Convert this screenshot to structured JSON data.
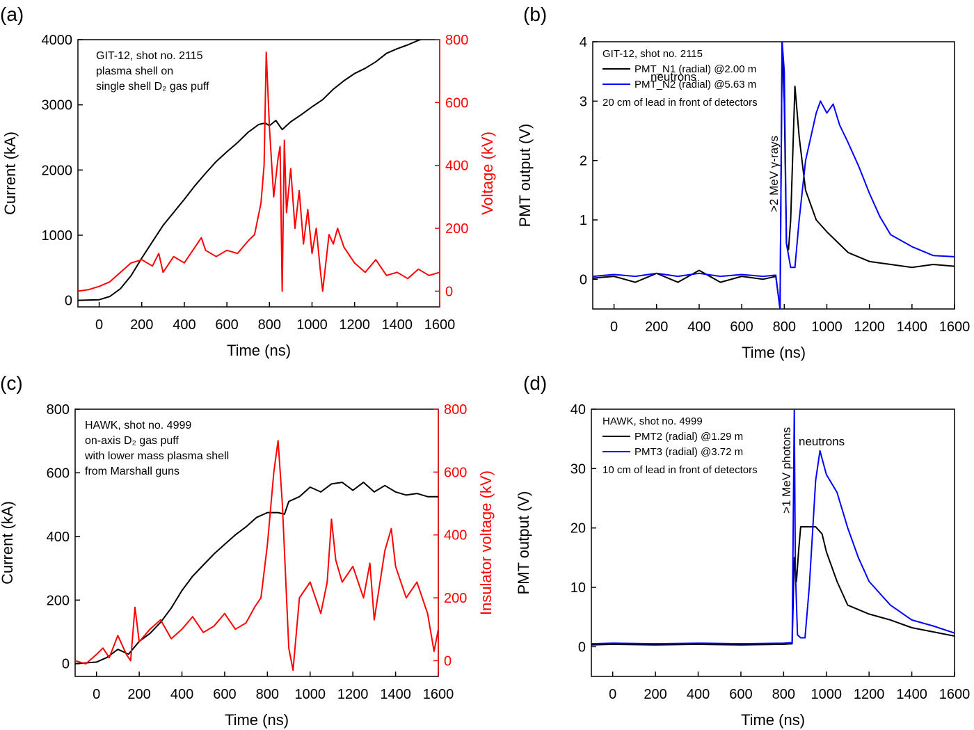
{
  "chart_data": [
    {
      "panel": "(a)",
      "type": "line",
      "xlabel": "Time (ns)",
      "ylabel": "Current (kA)",
      "y2label": "Voltage (kV)",
      "xlim": [
        -100,
        1600
      ],
      "ylim": [
        -100,
        4000
      ],
      "y2lim": [
        -50,
        800
      ],
      "xticks": [
        0,
        200,
        400,
        600,
        800,
        1000,
        1200,
        1400,
        1600
      ],
      "yticks": [
        0,
        1000,
        2000,
        3000,
        4000
      ],
      "y2ticks": [
        0,
        200,
        400,
        600,
        800
      ],
      "annotations": [
        "GIT-12, shot no. 2115",
        "plasma shell on",
        "single shell D₂ gas puff"
      ],
      "series": [
        {
          "name": "Current",
          "axis": "left",
          "color": "#000000",
          "x": [
            -100,
            0,
            50,
            100,
            150,
            200,
            250,
            300,
            350,
            400,
            450,
            500,
            550,
            600,
            650,
            700,
            750,
            780,
            800,
            830,
            860,
            900,
            950,
            1000,
            1050,
            1100,
            1150,
            1200,
            1250,
            1300,
            1350,
            1400,
            1450,
            1500,
            1530
          ],
          "y": [
            0,
            10,
            60,
            180,
            380,
            650,
            900,
            1150,
            1350,
            1550,
            1760,
            1950,
            2130,
            2280,
            2420,
            2580,
            2700,
            2720,
            2680,
            2760,
            2620,
            2740,
            2850,
            2970,
            3080,
            3240,
            3370,
            3480,
            3560,
            3660,
            3790,
            3860,
            3920,
            3990,
            4020
          ]
        },
        {
          "name": "Voltage",
          "axis": "right",
          "color": "#ff0000",
          "x": [
            -100,
            -50,
            0,
            50,
            100,
            150,
            200,
            250,
            280,
            300,
            350,
            400,
            450,
            480,
            500,
            550,
            600,
            650,
            700,
            730,
            760,
            775,
            785,
            800,
            820,
            840,
            850,
            860,
            870,
            880,
            900,
            920,
            940,
            960,
            980,
            1000,
            1020,
            1040,
            1050,
            1080,
            1100,
            1120,
            1150,
            1200,
            1250,
            1300,
            1350,
            1400,
            1450,
            1500,
            1550,
            1600
          ],
          "y": [
            0,
            5,
            15,
            30,
            60,
            90,
            100,
            80,
            120,
            60,
            110,
            90,
            140,
            170,
            130,
            110,
            130,
            120,
            160,
            180,
            280,
            400,
            760,
            520,
            300,
            420,
            460,
            0,
            480,
            250,
            390,
            200,
            320,
            150,
            260,
            120,
            200,
            60,
            0,
            180,
            150,
            200,
            140,
            90,
            60,
            100,
            50,
            60,
            40,
            70,
            50,
            60
          ]
        }
      ]
    },
    {
      "panel": "(b)",
      "type": "line",
      "xlabel": "Time (ns)",
      "ylabel": "PMT output (V)",
      "xlim": [
        -100,
        1600
      ],
      "ylim": [
        -0.5,
        4
      ],
      "xticks": [
        0,
        200,
        400,
        600,
        800,
        1000,
        1200,
        1400,
        1600
      ],
      "yticks": [
        0,
        1,
        2,
        3,
        4
      ],
      "annotations": [
        "GIT-12, shot no. 2115",
        "20 cm of lead in front of detectors",
        "neutrons",
        ">2 MeV γ-rays"
      ],
      "series": [
        {
          "name": "PMT_N1 (radial) @2.00 m",
          "color": "#000000",
          "x": [
            -100,
            0,
            100,
            200,
            300,
            400,
            500,
            600,
            700,
            760,
            780,
            790,
            800,
            810,
            820,
            830,
            850,
            870,
            900,
            950,
            1000,
            1100,
            1200,
            1300,
            1400,
            1500,
            1600
          ],
          "y": [
            0.02,
            0.05,
            -0.05,
            0.1,
            -0.05,
            0.15,
            -0.05,
            0.05,
            0.0,
            0.05,
            -0.5,
            4.0,
            3.0,
            0.6,
            0.5,
            1.0,
            3.25,
            2.4,
            1.5,
            1.0,
            0.8,
            0.45,
            0.3,
            0.25,
            0.2,
            0.25,
            0.22
          ]
        },
        {
          "name": "PMT_N2 (radial) @5.63 m",
          "color": "#0000ff",
          "x": [
            -100,
            0,
            100,
            200,
            300,
            400,
            500,
            600,
            700,
            760,
            780,
            790,
            800,
            810,
            830,
            850,
            870,
            900,
            950,
            970,
            1000,
            1030,
            1060,
            1100,
            1150,
            1200,
            1250,
            1300,
            1400,
            1500,
            1600
          ],
          "y": [
            0.05,
            0.08,
            0.05,
            0.1,
            0.05,
            0.1,
            0.05,
            0.08,
            0.05,
            0.07,
            -0.5,
            4.0,
            3.5,
            0.6,
            0.2,
            0.2,
            1.0,
            2.0,
            2.8,
            3.0,
            2.8,
            2.95,
            2.6,
            2.3,
            1.9,
            1.45,
            1.05,
            0.75,
            0.55,
            0.4,
            0.38
          ]
        }
      ]
    },
    {
      "panel": "(c)",
      "type": "line",
      "xlabel": "Time (ns)",
      "ylabel": "Current (kA)",
      "y2label": "Insulator voltage (kV)",
      "xlim": [
        -100,
        1600
      ],
      "ylim": [
        -40,
        800
      ],
      "y2lim": [
        -50,
        800
      ],
      "xticks": [
        0,
        200,
        400,
        600,
        800,
        1000,
        1200,
        1400,
        1600
      ],
      "yticks": [
        0,
        200,
        400,
        600,
        800
      ],
      "y2ticks": [
        0,
        200,
        400,
        600,
        800
      ],
      "annotations": [
        "HAWK, shot no. 4999",
        "on-axis D₂ gas puff",
        "with lower mass plasma shell",
        "from Marshall guns"
      ],
      "series": [
        {
          "name": "Current",
          "axis": "left",
          "color": "#000000",
          "x": [
            -100,
            0,
            50,
            100,
            150,
            200,
            250,
            300,
            350,
            400,
            450,
            500,
            550,
            600,
            650,
            700,
            750,
            800,
            850,
            880,
            900,
            950,
            1000,
            1050,
            1100,
            1150,
            1200,
            1250,
            1300,
            1350,
            1400,
            1450,
            1500,
            1550,
            1600
          ],
          "y": [
            0,
            5,
            20,
            45,
            30,
            70,
            95,
            130,
            175,
            230,
            275,
            310,
            345,
            375,
            405,
            430,
            460,
            475,
            475,
            470,
            510,
            525,
            555,
            540,
            565,
            570,
            545,
            570,
            540,
            560,
            540,
            530,
            535,
            525,
            525
          ]
        },
        {
          "name": "Insulator voltage",
          "axis": "right",
          "color": "#ff0000",
          "x": [
            -100,
            -50,
            0,
            30,
            60,
            100,
            140,
            160,
            180,
            200,
            250,
            300,
            350,
            400,
            450,
            500,
            550,
            600,
            650,
            700,
            740,
            770,
            800,
            830,
            850,
            870,
            900,
            920,
            950,
            1000,
            1050,
            1080,
            1100,
            1120,
            1150,
            1200,
            1250,
            1280,
            1300,
            1350,
            1380,
            1400,
            1450,
            1500,
            1550,
            1580,
            1600
          ],
          "y": [
            0,
            -10,
            20,
            40,
            10,
            80,
            20,
            0,
            170,
            60,
            100,
            130,
            70,
            100,
            140,
            90,
            110,
            150,
            100,
            120,
            170,
            200,
            370,
            600,
            700,
            500,
            40,
            -30,
            200,
            250,
            150,
            250,
            450,
            320,
            250,
            300,
            200,
            310,
            130,
            350,
            420,
            300,
            200,
            250,
            150,
            30,
            100
          ]
        }
      ]
    },
    {
      "panel": "(d)",
      "type": "line",
      "xlabel": "Time (ns)",
      "ylabel": "PMT output (V)",
      "xlim": [
        -100,
        1600
      ],
      "ylim": [
        -5,
        40
      ],
      "xticks": [
        0,
        200,
        400,
        600,
        800,
        1000,
        1200,
        1400,
        1600
      ],
      "yticks": [
        0,
        10,
        20,
        30,
        40
      ],
      "annotations": [
        "HAWK, shot no. 4999",
        "10 cm of lead in front of detectors",
        "neutrons",
        ">1 MeV photons"
      ],
      "series": [
        {
          "name": "PMT2 (radial) @1.29 m",
          "color": "#000000",
          "x": [
            -100,
            0,
            200,
            400,
            600,
            800,
            840,
            850,
            860,
            870,
            880,
            900,
            950,
            980,
            1000,
            1050,
            1100,
            1200,
            1300,
            1400,
            1500,
            1600
          ],
          "y": [
            0.3,
            0.4,
            0.3,
            0.4,
            0.3,
            0.4,
            0.5,
            15,
            11,
            16,
            20.2,
            20.2,
            20.2,
            19,
            16,
            11,
            7,
            5.5,
            4.5,
            3.2,
            2.5,
            1.8
          ]
        },
        {
          "name": "PMT3 (radial) @3.72 m",
          "color": "#0000ff",
          "x": [
            -100,
            0,
            200,
            400,
            600,
            800,
            840,
            850,
            855,
            865,
            880,
            900,
            920,
            950,
            970,
            1000,
            1050,
            1100,
            1150,
            1200,
            1300,
            1400,
            1500,
            1600
          ],
          "y": [
            0.5,
            0.6,
            0.5,
            0.6,
            0.5,
            0.6,
            0.7,
            40,
            13,
            2,
            1.5,
            1.5,
            10,
            28,
            33,
            29,
            26,
            20,
            15,
            11,
            7,
            4.5,
            3.5,
            2.3
          ]
        }
      ]
    }
  ]
}
